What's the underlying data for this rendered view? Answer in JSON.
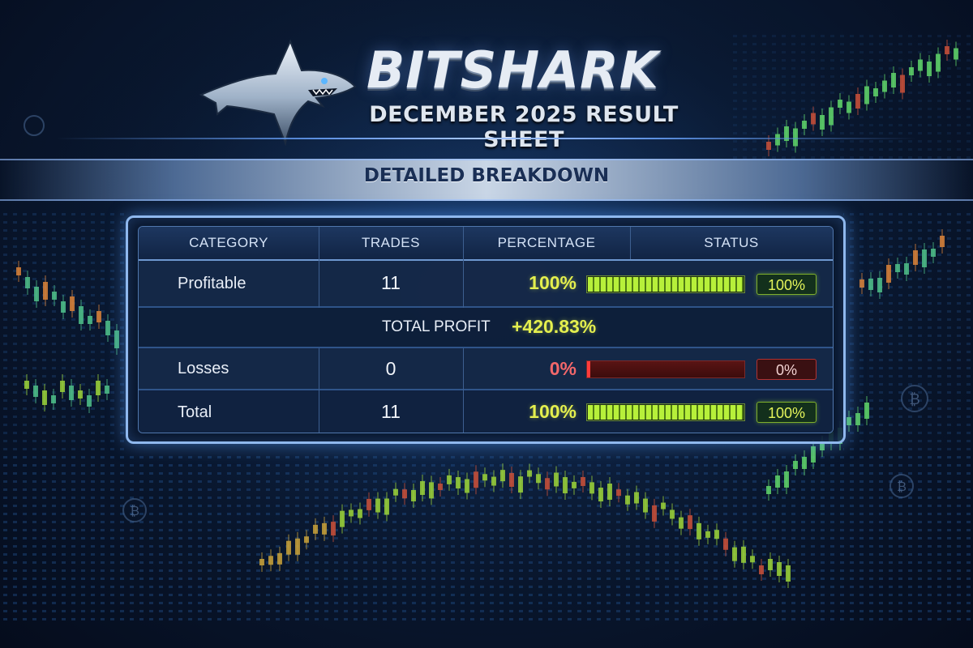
{
  "header": {
    "brand": "BITSHARK",
    "subtitle": "DECEMBER 2025 RESULT SHEET",
    "banner": "DETAILED BREAKDOWN"
  },
  "table": {
    "columns": [
      "CATEGORY",
      "TRADES",
      "PERCENTAGE",
      "STATUS"
    ],
    "rows": [
      {
        "category": "Profitable",
        "trades": "11",
        "percentage": "100%",
        "status": "100%",
        "fill": 1.0,
        "tone": "green"
      },
      {
        "category": "Losses",
        "trades": "0",
        "percentage": "0%",
        "status": "0%",
        "fill": 0.0,
        "tone": "red"
      },
      {
        "category": "Total",
        "trades": "11",
        "percentage": "100%",
        "status": "100%",
        "fill": 1.0,
        "tone": "green"
      }
    ],
    "total_profit": {
      "label": "TOTAL PROFIT",
      "value": "+420.83%"
    }
  },
  "colors": {
    "positive": "#e4ef4e",
    "negative": "#f2676a",
    "bar_green": "#b7f03a",
    "bar_red": "#ff3b3b",
    "frame": "#8fb8ee"
  },
  "icons": [
    "shark-logo-icon",
    "bitcoin-coin-icon"
  ]
}
